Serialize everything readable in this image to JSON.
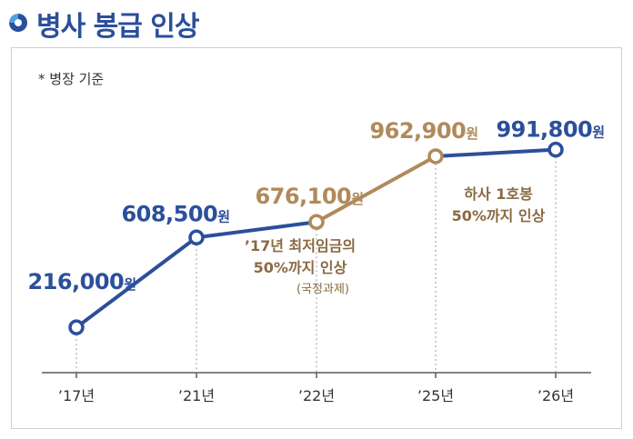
{
  "header": {
    "title": "병사 봉급 인상",
    "icon": "circle-ring-icon"
  },
  "chart_data": {
    "type": "line",
    "note": "* 병장 기준",
    "categories": [
      "’17년",
      "’21년",
      "’22년",
      "’25년",
      "’26년"
    ],
    "values": [
      216000,
      608500,
      676100,
      962900,
      991800
    ],
    "value_labels": [
      "216,000",
      "608,500",
      "676,100",
      "962,900",
      "991,800"
    ],
    "unit": "원",
    "point_colors": [
      "#2b4f9b",
      "#2b4f9b",
      "#b08a5a",
      "#b08a5a",
      "#2b4f9b"
    ],
    "segment_colors": [
      "#2b4f9b",
      "#2b4f9b",
      "#b08a5a",
      "#2b4f9b"
    ],
    "annotations": [
      {
        "category_index": 2,
        "lines": [
          "’17년 최저임금의",
          "50%까지 인상"
        ],
        "sub": "(국정과제)",
        "color": "#8a6a42"
      },
      {
        "category_index": 3,
        "lines": [
          "하사 1호봉",
          "50%까지 인상"
        ],
        "sub": "",
        "color": "#8a6a42"
      }
    ],
    "colors": {
      "blue": "#2b4f9b",
      "tan": "#b08a5a"
    },
    "grid": false,
    "legend": "none"
  }
}
